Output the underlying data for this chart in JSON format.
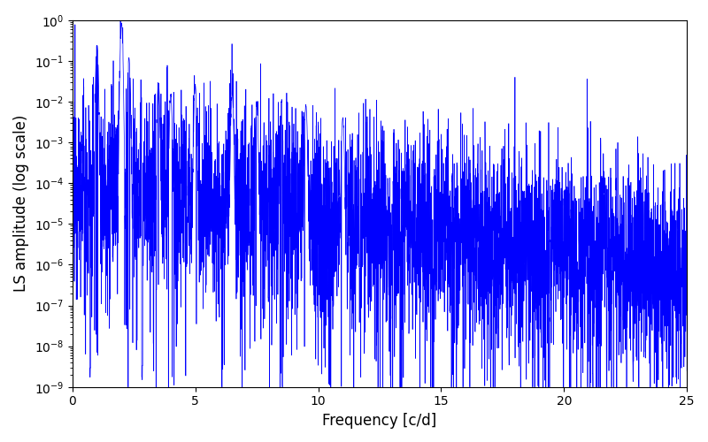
{
  "xlabel": "Frequency [c/d]",
  "ylabel": "LS amplitude (log scale)",
  "line_color": "#0000FF",
  "xlim": [
    0,
    25
  ],
  "ylim": [
    1e-09,
    1.0
  ],
  "yscale": "log",
  "figsize": [
    8.0,
    5.0
  ],
  "dpi": 100,
  "seed": 12345,
  "n_points": 5000,
  "freq_max": 25.0,
  "background_color": "#ffffff"
}
